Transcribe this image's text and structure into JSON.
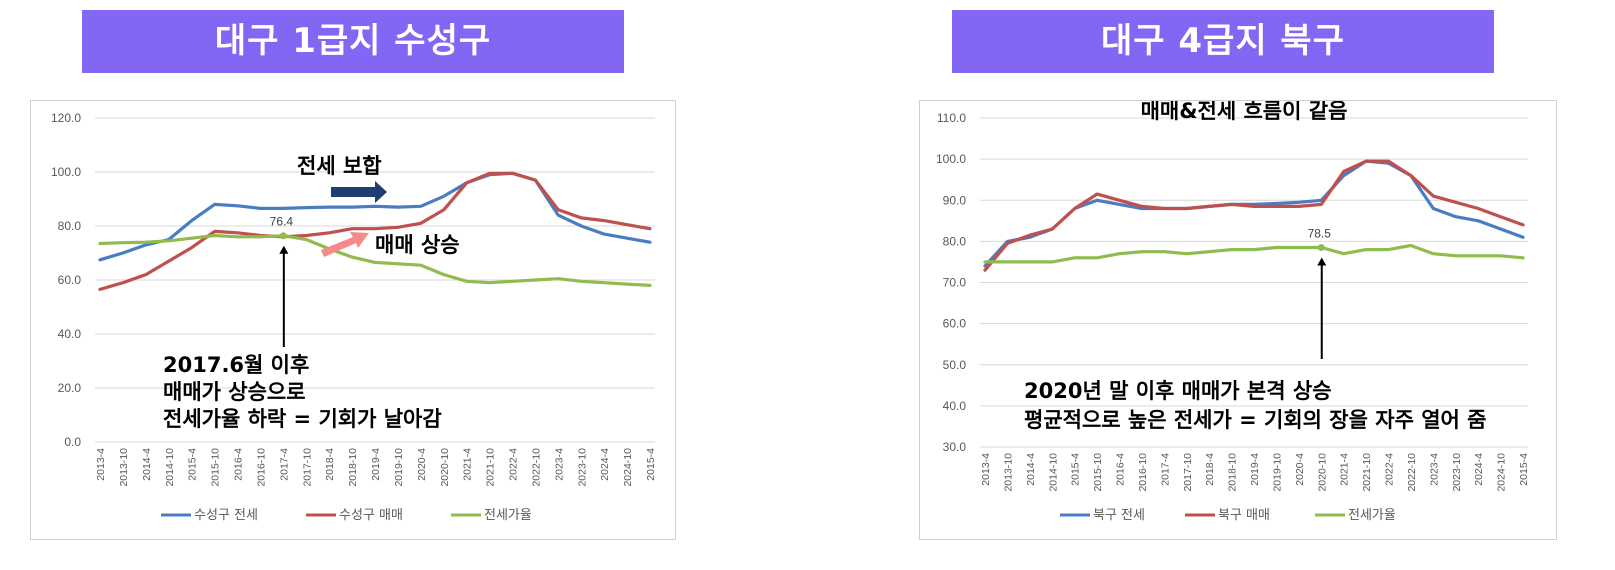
{
  "banners": {
    "left": "대구 1급지 수성구",
    "right": "대구 4급지 북구"
  },
  "colors": {
    "banner": "#8466f5",
    "jeonse": "#4a7cc4",
    "maemae": "#c0504d",
    "ratio": "#8fbc4e",
    "arrow_dark": "#1f3f73",
    "arrow_pink": "#f48a8a"
  },
  "icons": [
    "arrow-up-icon",
    "arrow-right-icon"
  ],
  "chart_data": [
    {
      "type": "line",
      "title": "",
      "ylim": [
        0,
        120
      ],
      "yticks": [
        "120.0",
        "100.0",
        "80.0",
        "60.0",
        "40.0",
        "20.0",
        "0.0"
      ],
      "x": [
        "2013-4",
        "2013-10",
        "2014-4",
        "2014-10",
        "2015-4",
        "2015-10",
        "2016-4",
        "2016-10",
        "2017-4",
        "2017-10",
        "2018-4",
        "2018-10",
        "2019-4",
        "2019-10",
        "2020-4",
        "2020-10",
        "2021-4",
        "2021-10",
        "2022-4",
        "2022-10",
        "2023-4",
        "2023-10",
        "2024-4",
        "2024-10",
        "2015-4"
      ],
      "series": [
        {
          "name": "수성구 전세",
          "color": "#4a7cc4",
          "values": [
            67.5,
            70,
            73,
            75,
            82,
            88,
            87.5,
            86.5,
            86.5,
            86.8,
            87,
            87,
            87.3,
            87,
            87.3,
            91,
            96,
            99,
            99.5,
            97,
            84,
            80,
            77,
            75.5,
            74
          ]
        },
        {
          "name": "수성구 매매",
          "color": "#c0504d",
          "values": [
            56.5,
            59,
            62,
            67,
            72,
            78,
            77.5,
            76.5,
            76,
            76.5,
            77.5,
            79,
            79,
            79.5,
            81,
            86,
            96,
            99.5,
            99.5,
            97,
            86,
            83,
            82,
            80.5,
            79
          ]
        },
        {
          "name": "전세가율",
          "color": "#8fbc4e",
          "values": [
            73.5,
            73.8,
            74,
            74.5,
            75.5,
            76.5,
            76,
            76,
            76.4,
            75,
            71.5,
            68.5,
            66.5,
            66,
            65.5,
            62,
            59.5,
            59,
            59.5,
            60,
            60.5,
            59.5,
            59,
            58.5,
            58
          ]
        }
      ],
      "markers": [
        {
          "x": "2017-4",
          "y": 76.4,
          "label": "76.4"
        }
      ],
      "legend_position": "bottom",
      "annotations": {
        "jeonse_flat": "전세 보합",
        "maemae_up": "매매 상승",
        "note": [
          "2017.6월 이후",
          "매매가 상승으로",
          "전세가율 하락 = 기회가 날아감"
        ]
      }
    },
    {
      "type": "line",
      "title": "매매&전세 흐름이 같음",
      "ylim": [
        30,
        110
      ],
      "yticks": [
        "110.0",
        "100.0",
        "90.0",
        "80.0",
        "70.0",
        "60.0",
        "50.0",
        "40.0",
        "30.0"
      ],
      "x": [
        "2013-4",
        "2013-10",
        "2014-4",
        "2014-10",
        "2015-4",
        "2015-10",
        "2016-4",
        "2016-10",
        "2017-4",
        "2017-10",
        "2018-4",
        "2018-10",
        "2019-4",
        "2019-10",
        "2020-4",
        "2020-10",
        "2021-4",
        "2021-10",
        "2022-4",
        "2022-10",
        "2023-4",
        "2023-10",
        "2024-4",
        "2024-10",
        "2015-4"
      ],
      "series": [
        {
          "name": "북구 전세",
          "color": "#4a7cc4",
          "values": [
            74,
            80,
            81,
            83,
            88,
            90,
            89,
            88,
            88,
            88,
            88.5,
            89,
            89,
            89.2,
            89.5,
            90,
            96,
            99.5,
            99,
            96,
            88,
            86,
            85,
            83,
            81
          ]
        },
        {
          "name": "북구 매매",
          "color": "#c0504d",
          "values": [
            73,
            79.5,
            81.5,
            83,
            88,
            91.5,
            90,
            88.5,
            88,
            88,
            88.5,
            89,
            88.5,
            88.5,
            88.5,
            89,
            97,
            99.5,
            99.5,
            96,
            91,
            89.5,
            88,
            86,
            84
          ]
        },
        {
          "name": "전세가율",
          "color": "#8fbc4e",
          "values": [
            75,
            75,
            75,
            75,
            76,
            76,
            77,
            77.5,
            77.5,
            77,
            77.5,
            78,
            78,
            78.5,
            78.5,
            78.5,
            77,
            78,
            78,
            79,
            77,
            76.5,
            76.5,
            76.5,
            76
          ]
        }
      ],
      "markers": [
        {
          "x": "2020-10",
          "y": 78.5,
          "label": "78.5"
        }
      ],
      "legend_position": "bottom",
      "annotations": {
        "note": [
          "2020년 말 이후 매매가 본격 상승",
          "평균적으로 높은 전세가 = 기회의 장을 자주 열어 줌"
        ]
      }
    }
  ]
}
